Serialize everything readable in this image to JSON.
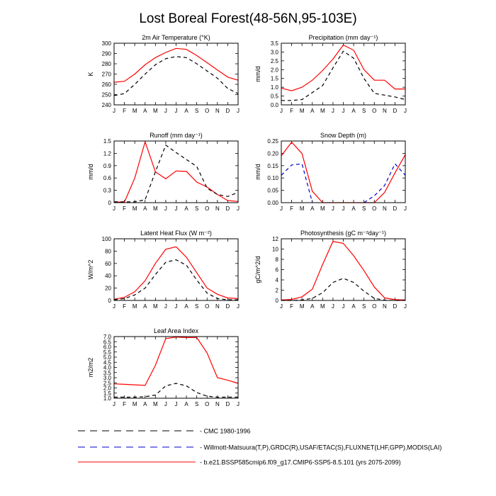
{
  "figure_title": "Lost Boreal Forest(48-56N,95-103E)",
  "colors": {
    "model": "#ff0000",
    "cmc": "#000000",
    "obs": "#0000cc",
    "frame": "#000000"
  },
  "chart_data": [
    {
      "type": "line",
      "title": "2m Air Temperature (°K)",
      "ylabel": "K",
      "x": [
        "J",
        "F",
        "M",
        "A",
        "M",
        "J",
        "J",
        "A",
        "S",
        "O",
        "N",
        "D",
        "J"
      ],
      "ylim": [
        240,
        300
      ],
      "yticks": [
        "240",
        "250",
        "260",
        "270",
        "280",
        "290",
        "300"
      ],
      "series": [
        {
          "name": "b.e21.BSSP585cmip6.f09_g17.CMIP6-SSP5-8.5.101 (yrs 2075-2099)",
          "style": "model",
          "values": [
            262,
            263,
            270,
            279,
            286,
            291,
            295,
            294,
            288,
            281,
            274,
            267,
            264
          ]
        },
        {
          "name": "CMC 1980-1996",
          "style": "cmc",
          "values": [
            249,
            251,
            260,
            270,
            279,
            285,
            287,
            286,
            280,
            273,
            266,
            256,
            251
          ]
        }
      ]
    },
    {
      "type": "line",
      "title": "Precipitation (mm day⁻¹)",
      "ylabel": "mm/d",
      "x": [
        "J",
        "F",
        "M",
        "A",
        "M",
        "J",
        "J",
        "A",
        "S",
        "O",
        "N",
        "D",
        "J"
      ],
      "ylim": [
        0,
        3.5
      ],
      "yticks": [
        "0.0",
        "0.5",
        "1.0",
        "1.5",
        "2.0",
        "2.5",
        "3.0",
        "3.5"
      ],
      "series": [
        {
          "name": "b.e21.BSSP585cmip6.f09_g17.CMIP6-SSP5-8.5.101 (yrs 2075-2099)",
          "style": "model",
          "values": [
            0.95,
            0.8,
            1.0,
            1.4,
            1.95,
            2.6,
            3.4,
            3.1,
            2.0,
            1.4,
            1.4,
            0.9,
            0.9
          ]
        },
        {
          "name": "Willmott-Matsuura(T,P),GRDC(R),USAF/ETAC(S),FLUXNET(LHF,GPP),MODIS(LAI)",
          "style": "cmc",
          "values": [
            0.25,
            0.25,
            0.3,
            0.7,
            1.1,
            2.1,
            3.05,
            2.65,
            1.5,
            0.65,
            0.55,
            0.45,
            0.3
          ]
        }
      ]
    },
    {
      "type": "line",
      "title": "Runoff (mm day⁻¹)",
      "ylabel": "mm/d",
      "x": [
        "J",
        "F",
        "M",
        "A",
        "M",
        "J",
        "J",
        "A",
        "S",
        "O",
        "N",
        "D",
        "J"
      ],
      "ylim": [
        0,
        1.5
      ],
      "yticks": [
        "0",
        "0.3",
        "0.6",
        "0.9",
        "1.2",
        "1.5"
      ],
      "series": [
        {
          "name": "b.e21.BSSP585cmip6.f09_g17.CMIP6-SSP5-8.5.101 (yrs 2075-2099)",
          "style": "model",
          "values": [
            0.02,
            0.01,
            0.6,
            1.48,
            0.75,
            0.58,
            0.77,
            0.76,
            0.5,
            0.38,
            0.2,
            0.05,
            0.03
          ]
        },
        {
          "name": "Willmott-Matsuura(T,P),GRDC(R),USAF/ETAC(S),FLUXNET(LHF,GPP),MODIS(LAI)",
          "style": "cmc",
          "values": [
            0.02,
            0.02,
            0.02,
            0.07,
            0.75,
            1.4,
            1.22,
            1.05,
            0.88,
            0.35,
            0.2,
            0.15,
            0.25
          ]
        }
      ]
    },
    {
      "type": "line",
      "title": "Snow Depth (m)",
      "ylabel": "mm/d",
      "x": [
        "J",
        "F",
        "M",
        "A",
        "M",
        "J",
        "J",
        "A",
        "S",
        "O",
        "N",
        "D",
        "J"
      ],
      "ylim": [
        0,
        0.27
      ],
      "yticks": [
        "0.00",
        "0.05",
        "0.10",
        "0.15",
        "0.20",
        "0.25"
      ],
      "series": [
        {
          "name": "b.e21.BSSP585cmip6.f09_g17.CMIP6-SSP5-8.5.101 (yrs 2075-2099)",
          "style": "model",
          "values": [
            0.205,
            0.265,
            0.215,
            0.05,
            0.0,
            0.0,
            0.0,
            0.0,
            0.0,
            0.0,
            0.045,
            0.13,
            0.21
          ]
        },
        {
          "name": "Willmott-Matsuura(T,P),GRDC(R),USAF/ETAC(S),FLUXNET(LHF,GPP),MODIS(LAI)",
          "style": "obs",
          "values": [
            0.12,
            0.165,
            0.17,
            0.0,
            null,
            null,
            null,
            null,
            0.0,
            0.03,
            0.075,
            0.17,
            0.12
          ]
        }
      ]
    },
    {
      "type": "line",
      "title": "Latent Heat Flux (W m⁻²)",
      "ylabel": "W/m^2",
      "x": [
        "J",
        "F",
        "M",
        "A",
        "M",
        "J",
        "J",
        "A",
        "S",
        "O",
        "N",
        "D",
        "J"
      ],
      "ylim": [
        0,
        100
      ],
      "yticks": [
        "0",
        "20",
        "40",
        "60",
        "80",
        "100"
      ],
      "series": [
        {
          "name": "b.e21.BSSP585cmip6.f09_g17.CMIP6-SSP5-8.5.101 (yrs 2075-2099)",
          "style": "model",
          "values": [
            2,
            5,
            14,
            32,
            60,
            83,
            87,
            70,
            45,
            20,
            10,
            4,
            3
          ]
        },
        {
          "name": "Willmott-Matsuura(T,P),GRDC(R),USAF/ETAC(S),FLUXNET(LHF,GPP),MODIS(LAI)",
          "style": "cmc",
          "values": [
            1,
            3,
            9,
            20,
            42,
            62,
            66,
            57,
            33,
            12,
            3,
            1,
            1
          ]
        }
      ]
    },
    {
      "type": "line",
      "title": "Photosynthesis (gC m⁻²day⁻¹)",
      "ylabel": "gC/m^2/d",
      "x": [
        "J",
        "F",
        "M",
        "A",
        "M",
        "J",
        "J",
        "A",
        "S",
        "O",
        "N",
        "D",
        "J"
      ],
      "ylim": [
        0,
        12
      ],
      "yticks": [
        "0",
        "2",
        "4",
        "6",
        "8",
        "10",
        "12"
      ],
      "series": [
        {
          "name": "b.e21.BSSP585cmip6.f09_g17.CMIP6-SSP5-8.5.101 (yrs 2075-2099)",
          "style": "model",
          "values": [
            0.1,
            0.2,
            0.7,
            2.2,
            7.0,
            11.5,
            11.1,
            8.7,
            5.8,
            2.6,
            0.5,
            0.15,
            0.1
          ]
        },
        {
          "name": "Willmott-Matsuura(T,P),GRDC(R),USAF/ETAC(S),FLUXNET(LHF,GPP),MODIS(LAI)",
          "style": "cmc",
          "values": [
            0.0,
            0.0,
            0.1,
            0.4,
            1.5,
            3.5,
            4.3,
            3.5,
            1.8,
            0.4,
            0.05,
            0.0,
            0.0
          ]
        }
      ]
    },
    {
      "type": "line",
      "title": "Leaf Area Index",
      "ylabel": "m2/m2",
      "x": [
        "J",
        "F",
        "M",
        "A",
        "M",
        "J",
        "J",
        "A",
        "S",
        "O",
        "N",
        "D",
        "J"
      ],
      "ylim": [
        1.0,
        7.0
      ],
      "yticks": [
        "1.0",
        "1.5",
        "2.0",
        "2.5",
        "3.0",
        "3.5",
        "4.0",
        "4.5",
        "5.0",
        "5.5",
        "6.0",
        "6.5",
        "7.0"
      ],
      "series": [
        {
          "name": "b.e21.BSSP585cmip6.f09_g17.CMIP6-SSP5-8.5.101 (yrs 2075-2099)",
          "style": "model",
          "values": [
            2.4,
            2.35,
            2.3,
            2.25,
            4.2,
            6.8,
            6.95,
            6.9,
            6.9,
            5.4,
            3.0,
            2.75,
            2.45
          ]
        },
        {
          "name": "Willmott-Matsuura(T,P),GRDC(R),USAF/ETAC(S),FLUXNET(LHF,GPP),MODIS(LAI)",
          "style": "cmc",
          "values": [
            1.1,
            1.1,
            1.1,
            1.15,
            1.3,
            2.2,
            2.45,
            2.2,
            1.55,
            1.2,
            1.1,
            1.1,
            1.1
          ]
        }
      ]
    }
  ],
  "legend": [
    {
      "label": "CMC 1980-1996",
      "style": "cmc"
    },
    {
      "label": "Willmott-Matsuura(T,P),GRDC(R),USAF/ETAC(S),FLUXNET(LHF,GPP),MODIS(LAI)",
      "style": "obs"
    },
    {
      "label": "b.e21.BSSP585cmip6.f09_g17.CMIP6-SSP5-8.5.101 (yrs 2075-2099)",
      "style": "model"
    }
  ]
}
